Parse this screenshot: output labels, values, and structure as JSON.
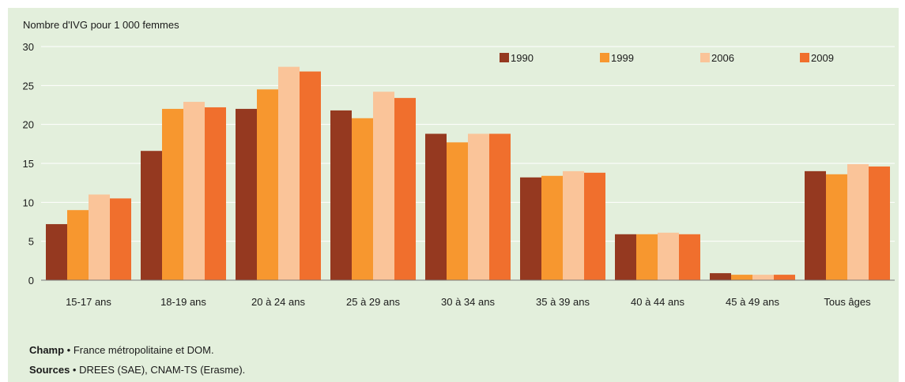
{
  "chart_data": {
    "type": "bar",
    "ylabel": "Nombre d'IVG pour 1 000 femmes",
    "ylim": [
      0,
      30
    ],
    "yticks": [
      0,
      5,
      10,
      15,
      20,
      25,
      30
    ],
    "grid": true,
    "legend_position": "top-right",
    "categories": [
      "15-17 ans",
      "18-19 ans",
      "20 à 24 ans",
      "25 à 29 ans",
      "30 à 34 ans",
      "35 à 39 ans",
      "40 à 44 ans",
      "45 à 49 ans",
      "Tous âges"
    ],
    "series": [
      {
        "name": "1990",
        "color": "#953920",
        "values": [
          7.2,
          16.6,
          22.0,
          21.8,
          18.8,
          13.2,
          5.9,
          0.9,
          14.0
        ]
      },
      {
        "name": "1999",
        "color": "#f7972f",
        "values": [
          9.0,
          22.0,
          24.5,
          20.8,
          17.7,
          13.4,
          5.9,
          0.7,
          13.6
        ]
      },
      {
        "name": "2006",
        "color": "#fac499",
        "values": [
          11.0,
          22.9,
          27.4,
          24.2,
          18.8,
          14.0,
          6.1,
          0.7,
          14.9
        ]
      },
      {
        "name": "2009",
        "color": "#f06f2d",
        "values": [
          10.5,
          22.2,
          26.8,
          23.4,
          18.8,
          13.8,
          5.9,
          0.7,
          14.6
        ]
      }
    ]
  },
  "notes": {
    "champ_label": "Champ",
    "champ_text": " • France métropolitaine et DOM.",
    "sources_label": "Sources",
    "sources_text": " • DREES (SAE), CNAM-TS (Erasme)."
  }
}
